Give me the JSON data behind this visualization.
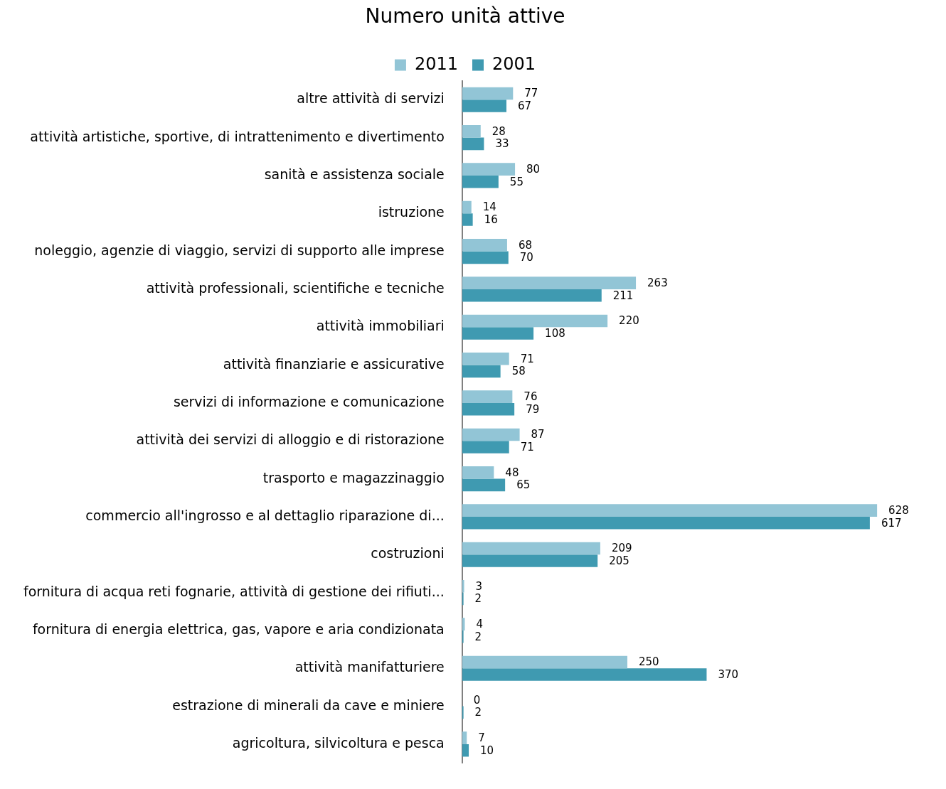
{
  "chart_data": {
    "type": "bar",
    "orientation": "horizontal",
    "title": "Numero unità attive",
    "categories": [
      "altre attività di servizi",
      "attività artistiche, sportive, di intrattenimento e divertimento",
      "sanità e assistenza sociale",
      "istruzione",
      "noleggio, agenzie di viaggio, servizi di supporto alle imprese",
      "attività professionali, scientifiche e tecniche",
      "attività immobiliari",
      "attività finanziarie e assicurative",
      "servizi di informazione e comunicazione",
      "attività dei servizi di alloggio e di ristorazione",
      "trasporto e magazzinaggio",
      "commercio all'ingrosso e al dettaglio riparazione di...",
      "costruzioni",
      "fornitura di acqua reti fognarie, attività di gestione dei rifiuti...",
      "fornitura di energia elettrica, gas, vapore e aria condizionata",
      "attività manifatturiere",
      "estrazione di minerali da cave e miniere",
      "agricoltura, silvicoltura e pesca"
    ],
    "series": [
      {
        "name": "2011",
        "color": "#92c5d6",
        "values": [
          77,
          28,
          80,
          14,
          68,
          263,
          220,
          71,
          76,
          87,
          48,
          628,
          209,
          3,
          4,
          250,
          0,
          7
        ]
      },
      {
        "name": "2001",
        "color": "#3f9ab1",
        "values": [
          67,
          33,
          55,
          16,
          70,
          211,
          108,
          58,
          79,
          71,
          65,
          617,
          205,
          2,
          2,
          370,
          2,
          10
        ]
      }
    ],
    "data_labels": true,
    "legend": "top",
    "grid": false,
    "tick_labels": "y"
  }
}
